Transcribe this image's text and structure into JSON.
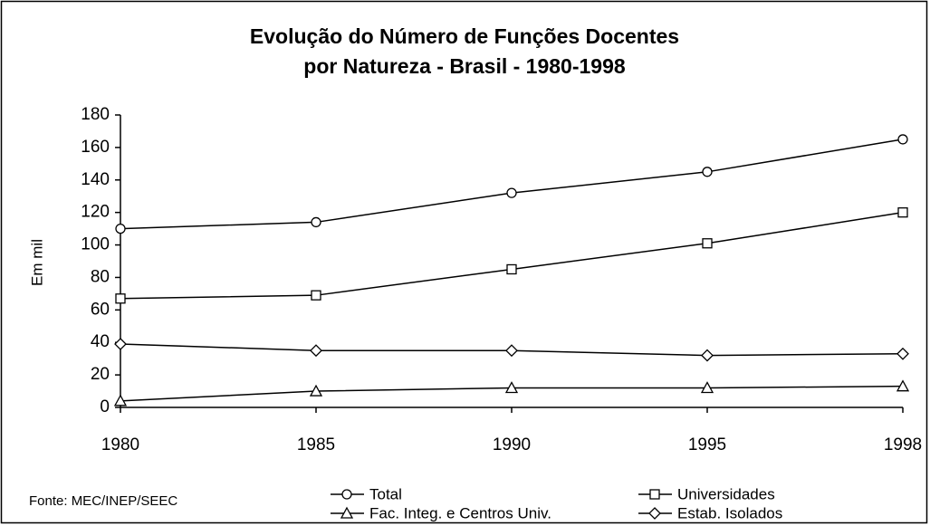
{
  "chart_data": {
    "type": "line",
    "title": [
      "Evolução do Número de Funções Docentes",
      "por Natureza - Brasil - 1980-1998"
    ],
    "y_label": "Em mil",
    "source": "Fonte: MEC/INEP/SEEC",
    "categories": [
      "1980",
      "1985",
      "1990",
      "1995",
      "1998"
    ],
    "ylim": [
      0,
      180
    ],
    "yticks": [
      0,
      20,
      40,
      60,
      80,
      100,
      120,
      140,
      160,
      180
    ],
    "series": [
      {
        "name": "Total",
        "color": "#000000",
        "marker": "circle",
        "values": [
          110,
          114,
          132,
          145,
          165
        ]
      },
      {
        "name": "Universidades",
        "color": "#000000",
        "marker": "square",
        "values": [
          67,
          69,
          85,
          101,
          120
        ]
      },
      {
        "name": "Fac. Integ. e Centros Univ.",
        "color": "#000000",
        "marker": "triangle",
        "values": [
          4,
          10,
          12,
          12,
          13
        ]
      },
      {
        "name": "Estab. Isolados",
        "color": "#000000",
        "marker": "diamond",
        "values": [
          39,
          35,
          35,
          32,
          33
        ]
      }
    ]
  }
}
